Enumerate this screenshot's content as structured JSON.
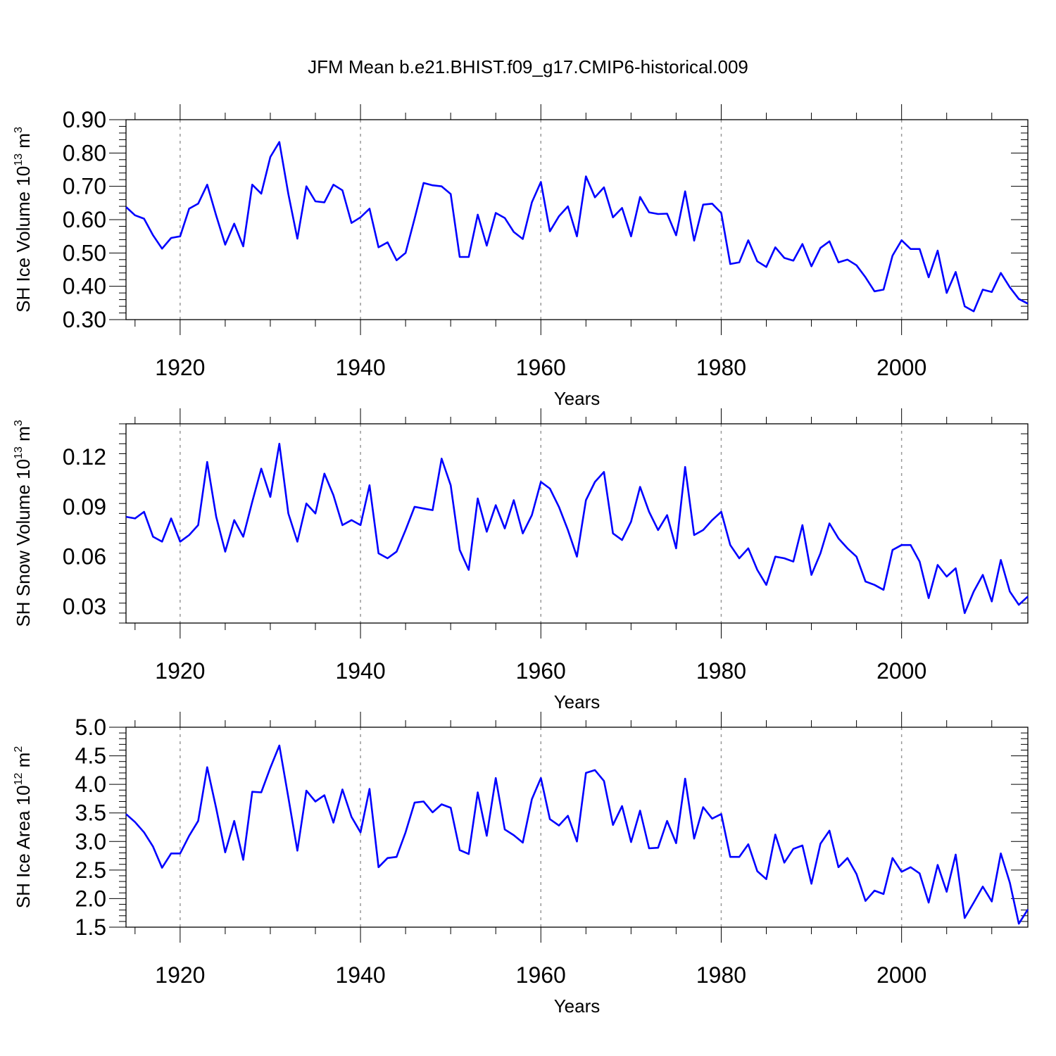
{
  "figure": {
    "title": "JFM Mean b.e21.BHIST.f09_g17.CMIP6-historical.009",
    "line_color": "#0000ff",
    "grid_color": "#999999"
  },
  "chart_data": [
    {
      "type": "line",
      "title": "",
      "xlabel": "Years",
      "ylabel_base": "SH Ice Volume 10",
      "ylabel_exp": "13",
      "ylabel_unit": " m",
      "ylabel_unit_exp": "3",
      "xlim": [
        1914,
        2014
      ],
      "ylim": [
        0.3,
        0.9
      ],
      "xticks": [
        1920,
        1940,
        1960,
        1980,
        2000
      ],
      "xtick_labels": [
        "1920",
        "1940",
        "1960",
        "1980",
        "2000"
      ],
      "yticks": [
        0.3,
        0.4,
        0.5,
        0.6,
        0.7,
        0.8,
        0.9
      ],
      "ytick_labels": [
        "0.30",
        "0.40",
        "0.50",
        "0.60",
        "0.70",
        "0.80",
        "0.90"
      ],
      "grid": "vertical dashed at major x ticks",
      "series": [
        {
          "x_start": 1914,
          "values": [
            0.638,
            0.613,
            0.603,
            0.553,
            0.513,
            0.545,
            0.55,
            0.633,
            0.648,
            0.705,
            0.612,
            0.525,
            0.588,
            0.52,
            0.705,
            0.678,
            0.788,
            0.833,
            0.677,
            0.543,
            0.7,
            0.655,
            0.652,
            0.705,
            0.688,
            0.59,
            0.607,
            0.633,
            0.517,
            0.532,
            0.478,
            0.5,
            0.603,
            0.71,
            0.703,
            0.7,
            0.677,
            0.488,
            0.488,
            0.615,
            0.522,
            0.62,
            0.605,
            0.563,
            0.542,
            0.652,
            0.713,
            0.565,
            0.61,
            0.64,
            0.55,
            0.73,
            0.667,
            0.697,
            0.607,
            0.635,
            0.55,
            0.668,
            0.622,
            0.617,
            0.618,
            0.553,
            0.685,
            0.537,
            0.645,
            0.648,
            0.62,
            0.467,
            0.472,
            0.538,
            0.475,
            0.458,
            0.517,
            0.485,
            0.477,
            0.527,
            0.46,
            0.515,
            0.535,
            0.472,
            0.48,
            0.463,
            0.427,
            0.385,
            0.39,
            0.492,
            0.538,
            0.512,
            0.512,
            0.427,
            0.507,
            0.38,
            0.443,
            0.34,
            0.325,
            0.39,
            0.383,
            0.44,
            0.397,
            0.362,
            0.348
          ]
        }
      ]
    },
    {
      "type": "line",
      "title": "",
      "xlabel": "Years",
      "ylabel_base": "SH Snow Volume 10",
      "ylabel_exp": "13",
      "ylabel_unit": " m",
      "ylabel_unit_exp": "3",
      "xlim": [
        1914,
        2014
      ],
      "ylim": [
        0.02,
        0.14
      ],
      "xticks": [
        1920,
        1940,
        1960,
        1980,
        2000
      ],
      "xtick_labels": [
        "1920",
        "1940",
        "1960",
        "1980",
        "2000"
      ],
      "yticks": [
        0.03,
        0.06,
        0.09,
        0.12
      ],
      "ytick_labels": [
        "0.03",
        "0.06",
        "0.09",
        "0.12"
      ],
      "grid": "vertical dashed at major x ticks",
      "series": [
        {
          "x_start": 1914,
          "values": [
            0.084,
            0.083,
            0.087,
            0.072,
            0.069,
            0.083,
            0.069,
            0.073,
            0.079,
            0.117,
            0.084,
            0.063,
            0.082,
            0.072,
            0.093,
            0.113,
            0.096,
            0.128,
            0.086,
            0.069,
            0.092,
            0.086,
            0.11,
            0.097,
            0.079,
            0.082,
            0.079,
            0.103,
            0.062,
            0.059,
            0.063,
            0.076,
            0.09,
            0.089,
            0.088,
            0.119,
            0.103,
            0.064,
            0.052,
            0.095,
            0.075,
            0.091,
            0.077,
            0.094,
            0.074,
            0.085,
            0.105,
            0.101,
            0.09,
            0.076,
            0.06,
            0.094,
            0.105,
            0.111,
            0.074,
            0.07,
            0.081,
            0.102,
            0.087,
            0.076,
            0.085,
            0.065,
            0.114,
            0.073,
            0.076,
            0.082,
            0.087,
            0.067,
            0.059,
            0.065,
            0.052,
            0.043,
            0.06,
            0.059,
            0.057,
            0.079,
            0.049,
            0.062,
            0.08,
            0.071,
            0.065,
            0.06,
            0.045,
            0.043,
            0.04,
            0.064,
            0.067,
            0.067,
            0.057,
            0.035,
            0.055,
            0.048,
            0.053,
            0.026,
            0.039,
            0.049,
            0.033,
            0.058,
            0.039,
            0.031,
            0.036
          ]
        }
      ]
    },
    {
      "type": "line",
      "title": "",
      "xlabel": "Years",
      "ylabel_base": "SH Ice Area 10",
      "ylabel_exp": "12",
      "ylabel_unit": " m",
      "ylabel_unit_exp": "2",
      "xlim": [
        1914,
        2014
      ],
      "ylim": [
        1.5,
        5.0
      ],
      "xticks": [
        1920,
        1940,
        1960,
        1980,
        2000
      ],
      "xtick_labels": [
        "1920",
        "1940",
        "1960",
        "1980",
        "2000"
      ],
      "yticks": [
        1.5,
        2.0,
        2.5,
        3.0,
        3.5,
        4.0,
        4.5,
        5.0
      ],
      "ytick_labels": [
        "1.5",
        "2.0",
        "2.5",
        "3.0",
        "3.5",
        "4.0",
        "4.5",
        "5.0"
      ],
      "grid": "vertical dashed at major x ticks",
      "series": [
        {
          "x_start": 1914,
          "values": [
            3.48,
            3.34,
            3.16,
            2.91,
            2.54,
            2.79,
            2.79,
            3.1,
            3.36,
            4.3,
            3.58,
            2.81,
            3.36,
            2.68,
            3.87,
            3.86,
            4.29,
            4.68,
            3.77,
            2.84,
            3.89,
            3.7,
            3.81,
            3.33,
            3.91,
            3.43,
            3.16,
            3.92,
            2.55,
            2.71,
            2.73,
            3.16,
            3.68,
            3.7,
            3.51,
            3.65,
            3.59,
            2.85,
            2.78,
            3.86,
            3.1,
            4.11,
            3.21,
            3.11,
            2.98,
            3.74,
            4.11,
            3.39,
            3.28,
            3.45,
            3.0,
            4.2,
            4.25,
            4.06,
            3.29,
            3.62,
            2.99,
            3.54,
            2.88,
            2.89,
            3.36,
            2.97,
            4.1,
            3.05,
            3.6,
            3.4,
            3.48,
            2.73,
            2.73,
            2.95,
            2.48,
            2.34,
            3.12,
            2.63,
            2.87,
            2.93,
            2.26,
            2.96,
            3.19,
            2.55,
            2.71,
            2.43,
            1.96,
            2.14,
            2.08,
            2.71,
            2.47,
            2.55,
            2.44,
            1.93,
            2.59,
            2.12,
            2.77,
            1.66,
            1.93,
            2.21,
            1.95,
            2.79,
            2.28,
            1.56,
            1.81
          ]
        }
      ]
    }
  ]
}
